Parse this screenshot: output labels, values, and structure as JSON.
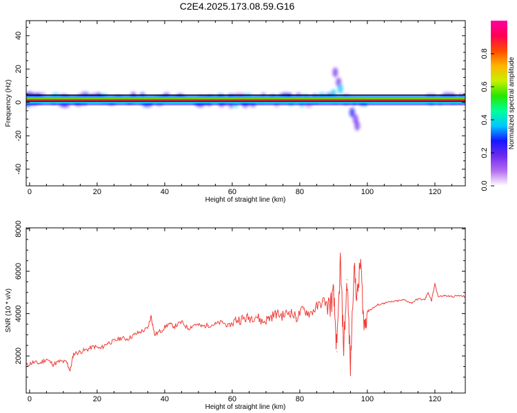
{
  "figure_title": "C2E4.2025.173.08.59.G16",
  "chart_data": [
    {
      "type": "heatmap",
      "xlabel": "Height of straight line (km)",
      "ylabel": "Frequency (Hz)",
      "xlim": [
        -1,
        129
      ],
      "ylim": [
        -50,
        49
      ],
      "xticks": [
        0,
        20,
        40,
        60,
        80,
        100,
        120
      ],
      "yticks": [
        -40,
        -20,
        0,
        20,
        40
      ],
      "colorbar": {
        "label": "Normalized spectral amplitude",
        "range": [
          0,
          1
        ],
        "ticks": [
          0.0,
          0.2,
          0.4,
          0.6,
          0.8
        ],
        "colormap": [
          "#ffffff",
          "#b56cf0",
          "#6e2bef",
          "#1616ff",
          "#00c8ff",
          "#00ff9a",
          "#27e600",
          "#c8f000",
          "#ffb400",
          "#ff4a00",
          "#ff0055",
          "#ff00a0"
        ]
      },
      "main_line": {
        "frequency_hz": 1.5,
        "x_range": [
          -1,
          129
        ]
      },
      "features": [
        {
          "x": 90.5,
          "y": 18,
          "amplitude": 0.15
        },
        {
          "x": 91.5,
          "y": 12,
          "amplitude": 0.2
        },
        {
          "x": 92,
          "y": 8,
          "amplitude": 0.35
        },
        {
          "x": 90,
          "y": 5,
          "amplitude": 0.4
        },
        {
          "x": 95.5,
          "y": -6,
          "amplitude": 0.25
        },
        {
          "x": 96.5,
          "y": -10,
          "amplitude": 0.22
        },
        {
          "x": 97,
          "y": -14,
          "amplitude": 0.15
        }
      ]
    },
    {
      "type": "line",
      "xlabel": "Height of straight line (km)",
      "ylabel": "SNR (10 * v/v)",
      "xlim": [
        -1,
        129
      ],
      "ylim": [
        250,
        8050
      ],
      "xticks": [
        0,
        20,
        40,
        60,
        80,
        100,
        120
      ],
      "yticks": [
        2000,
        4000,
        6000,
        8000
      ],
      "color": "#ee3b36",
      "series": [
        {
          "x": [
            -1,
            1,
            3,
            5,
            7,
            9,
            11,
            12,
            13,
            15,
            17,
            19,
            21,
            23,
            25,
            27,
            29,
            31,
            33,
            35,
            36,
            37,
            39,
            41,
            43,
            45,
            47,
            49,
            51,
            53,
            55,
            57,
            59,
            61,
            63,
            65,
            67,
            69,
            71,
            73,
            75,
            77,
            79,
            81,
            83,
            85,
            87,
            89,
            90,
            91,
            92,
            93,
            94,
            95,
            96,
            97,
            98,
            99,
            100,
            101,
            103,
            105,
            107,
            109,
            111,
            113,
            115,
            117,
            118,
            119,
            120,
            121,
            123,
            125,
            127,
            129
          ],
          "values": [
            1550,
            1700,
            1650,
            1850,
            1600,
            1750,
            1700,
            1300,
            2100,
            2200,
            2300,
            2450,
            2350,
            2600,
            2700,
            2850,
            2800,
            3000,
            3150,
            3300,
            3900,
            3000,
            3200,
            3500,
            3400,
            3600,
            3300,
            3500,
            3400,
            3450,
            3500,
            3600,
            3400,
            3700,
            3750,
            3800,
            3900,
            3600,
            3800,
            4000,
            3900,
            4100,
            3800,
            4200,
            4000,
            4300,
            4600,
            4400,
            4900,
            2200,
            6500,
            2400,
            5600,
            1400,
            6200,
            4700,
            6500,
            3400,
            4100,
            4200,
            4400,
            4500,
            4550,
            4600,
            4650,
            4500,
            4700,
            4650,
            5000,
            4600,
            5400,
            4800,
            4850,
            4800,
            4850,
            4800
          ]
        }
      ]
    }
  ]
}
